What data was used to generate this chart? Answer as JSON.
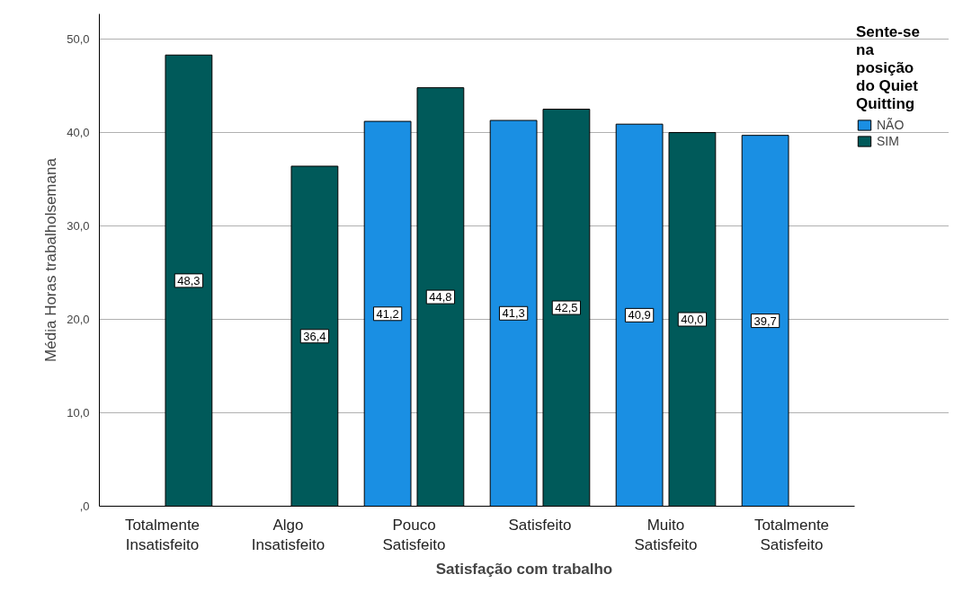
{
  "chart_data": {
    "type": "bar",
    "xlabel": "Satisfação com trabalho",
    "ylabel": "Média Horas trabalholsemana",
    "legend_title": "Sente-se na posição do Quiet Quitting",
    "categories": [
      "Totalmente\nInsatisfeito",
      "Algo\nInsatisfeito",
      "Pouco\nSatisfeito",
      "Satisfeito",
      "Muito\nSatisfeito",
      "Totalmente\nSatisfeito"
    ],
    "series": [
      {
        "name": "NÃO",
        "color": "#1a8fe3",
        "values": [
          null,
          null,
          41.2,
          41.3,
          40.9,
          39.7
        ],
        "value_labels": [
          null,
          null,
          "41,2",
          "41,3",
          "40,9",
          "39,7"
        ]
      },
      {
        "name": "SIM",
        "color": "#005a5a",
        "values": [
          48.3,
          36.4,
          44.8,
          42.5,
          40.0,
          null
        ],
        "value_labels": [
          "48,3",
          "36,4",
          "44,8",
          "42,5",
          "40,0",
          null
        ]
      }
    ],
    "ylim": [
      0,
      52.7
    ],
    "yticks": [
      {
        "value": 0,
        "label": ",0"
      },
      {
        "value": 10,
        "label": "10,0"
      },
      {
        "value": 20,
        "label": "20,0"
      },
      {
        "value": 30,
        "label": "30,0"
      },
      {
        "value": 40,
        "label": "40,0"
      },
      {
        "value": 50,
        "label": "50,0"
      }
    ],
    "grid": "y",
    "legend": "right"
  }
}
